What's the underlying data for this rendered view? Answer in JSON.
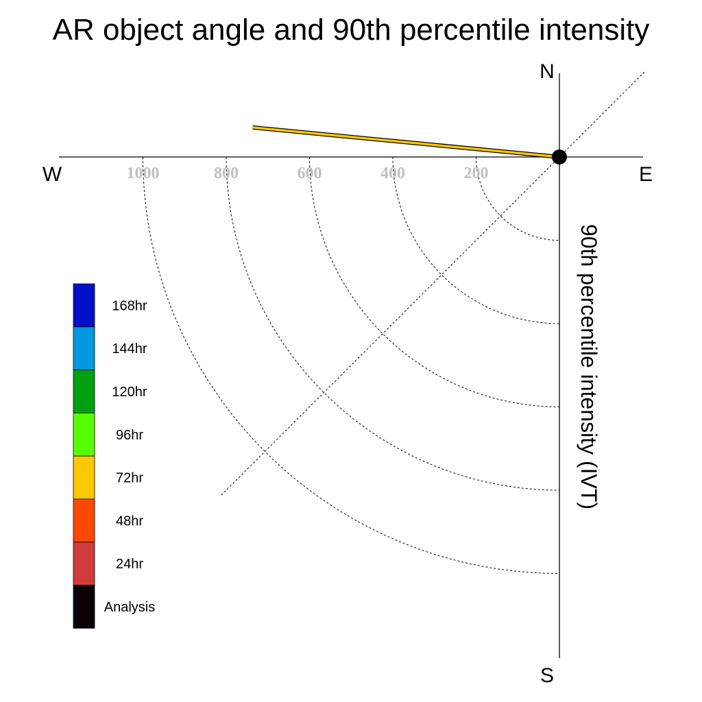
{
  "chart_data": {
    "type": "polar-line",
    "title": "AR object angle and 90th percentile intensity",
    "radial_label": "90th percentile intensity (IVT)",
    "radial_ticks": [
      200,
      400,
      600,
      800,
      1000
    ],
    "radial_max": 1150,
    "compass": {
      "north": "N",
      "south": "S",
      "east": "E",
      "west": "W"
    },
    "quadrant_shown": "south-west",
    "grid": true,
    "legend": {
      "placement": "left",
      "items": [
        {
          "label": "168hr",
          "color": "#0010c8"
        },
        {
          "label": "144hr",
          "color": "#0098e0"
        },
        {
          "label": "120hr",
          "color": "#00a010"
        },
        {
          "label": "96hr",
          "color": "#58ff00"
        },
        {
          "label": "72hr",
          "color": "#ffc800"
        },
        {
          "label": "48hr",
          "color": "#ff4800"
        },
        {
          "label": "24hr",
          "color": "#d03c3c"
        },
        {
          "label": "Analysis",
          "color": "#0a0008"
        }
      ]
    },
    "series": [
      {
        "name": "72hr",
        "color": "#ffc800",
        "angle_deg": 275.5,
        "intensity": 740
      }
    ],
    "origin_marker_color": "#000000"
  }
}
